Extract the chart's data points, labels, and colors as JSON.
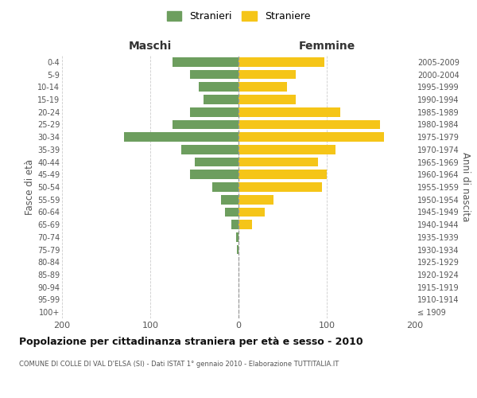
{
  "age_groups": [
    "100+",
    "95-99",
    "90-94",
    "85-89",
    "80-84",
    "75-79",
    "70-74",
    "65-69",
    "60-64",
    "55-59",
    "50-54",
    "45-49",
    "40-44",
    "35-39",
    "30-34",
    "25-29",
    "20-24",
    "15-19",
    "10-14",
    "5-9",
    "0-4"
  ],
  "birth_years": [
    "≤ 1909",
    "1910-1914",
    "1915-1919",
    "1920-1924",
    "1925-1929",
    "1930-1934",
    "1935-1939",
    "1940-1944",
    "1945-1949",
    "1950-1954",
    "1955-1959",
    "1960-1964",
    "1965-1969",
    "1970-1974",
    "1975-1979",
    "1980-1984",
    "1985-1989",
    "1990-1994",
    "1995-1999",
    "2000-2004",
    "2005-2009"
  ],
  "males": [
    0,
    0,
    0,
    0,
    0,
    2,
    3,
    8,
    15,
    20,
    30,
    55,
    50,
    65,
    130,
    75,
    55,
    40,
    45,
    55,
    75
  ],
  "females": [
    0,
    0,
    0,
    0,
    0,
    0,
    0,
    15,
    30,
    40,
    95,
    100,
    90,
    110,
    165,
    160,
    115,
    65,
    55,
    65,
    97
  ],
  "male_color": "#6d9e5e",
  "female_color": "#f5c518",
  "grid_color": "#cccccc",
  "title": "Popolazione per cittadinanza straniera per età e sesso - 2010",
  "subtitle": "COMUNE DI COLLE DI VAL D'ELSA (SI) - Dati ISTAT 1° gennaio 2010 - Elaborazione TUTTITALIA.IT",
  "left_label": "Maschi",
  "right_label": "Femmine",
  "ylabel": "Fasce di età",
  "right_ylabel": "Anni di nascita",
  "legend_male": "Stranieri",
  "legend_female": "Straniere",
  "xlim": 200,
  "bar_height": 0.75
}
